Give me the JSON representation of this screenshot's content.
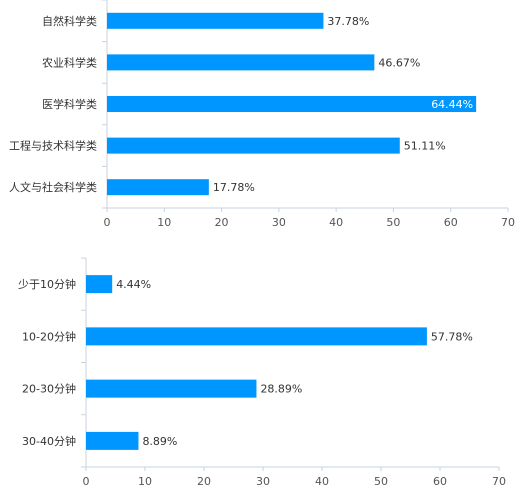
{
  "chart_data": [
    {
      "type": "bar",
      "orientation": "horizontal",
      "categories": [
        "自然科学类",
        "农业科学类",
        "医学科学类",
        "工程与技术科学类",
        "人文与社会科学类"
      ],
      "values": [
        37.78,
        46.67,
        64.44,
        51.11,
        17.78
      ],
      "data_labels": [
        "37.78%",
        "46.67%",
        "64.44%",
        "51.11%",
        "17.78%"
      ],
      "xticks": [
        "0",
        "10",
        "20",
        "30",
        "40",
        "50",
        "60",
        "70"
      ],
      "xlim": [
        0,
        70
      ],
      "bar_color": "#0096ff",
      "grid": false
    },
    {
      "type": "bar",
      "orientation": "horizontal",
      "categories": [
        "少于10分钟",
        "10-20分钟",
        "20-30分钟",
        "30-40分钟"
      ],
      "values": [
        4.44,
        57.78,
        28.89,
        8.89
      ],
      "data_labels": [
        "4.44%",
        "57.78%",
        "28.89%",
        "8.89%"
      ],
      "xticks": [
        "0",
        "10",
        "20",
        "30",
        "40",
        "50",
        "60",
        "70"
      ],
      "xlim": [
        0,
        70
      ],
      "bar_color": "#0096ff",
      "grid": false
    }
  ]
}
